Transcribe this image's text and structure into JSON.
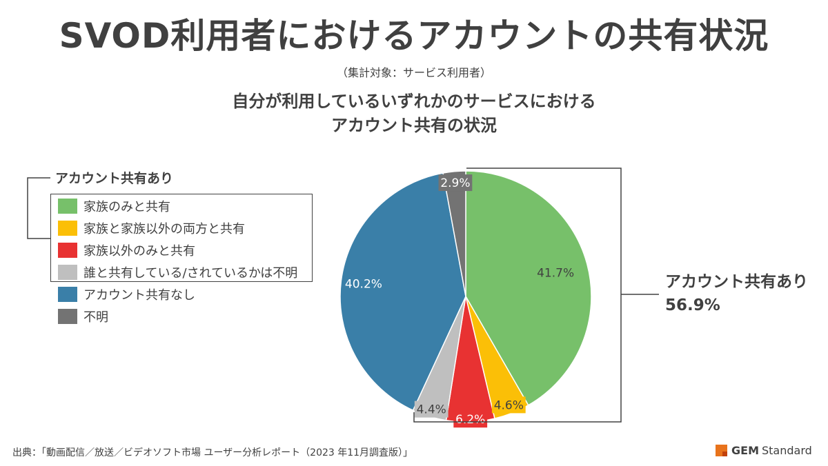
{
  "title": "SVOD利用者におけるアカウントの共有状況",
  "note": "（集計対象：サービス利用者）",
  "subtitle_line1": "自分が利用しているいずれかのサービスにおける",
  "subtitle_line2": "アカウント共有の状況",
  "legend_group_label": "アカウント共有あり",
  "callout": {
    "label": "アカウント共有あり",
    "value": "56.9%"
  },
  "source": "出典：「動画配信／放送／ビデオソフト市場 ユーザー分析レポート（2023 年11月調査版）」",
  "logo": {
    "brand": "GEM",
    "name": "Standard",
    "color": "#e8731c"
  },
  "chart_data": {
    "type": "pie",
    "title": "自分が利用しているいずれかのサービスにおけるアカウント共有の状況",
    "start_angle": "12 o'clock, clockwise",
    "slices": [
      {
        "label": "家族のみと共有",
        "value": 41.7,
        "display": "41.7%",
        "color": "#77c06a",
        "group": "アカウント共有あり"
      },
      {
        "label": "家族と家族以外の両方と共有",
        "value": 4.6,
        "display": "4.6%",
        "color": "#fbbf07",
        "group": "アカウント共有あり"
      },
      {
        "label": "家族以外のみと共有",
        "value": 6.2,
        "display": "6.2%",
        "color": "#e83232",
        "group": "アカウント共有あり"
      },
      {
        "label": "誰と共有している/されているかは不明",
        "value": 4.4,
        "display": "4.4%",
        "color": "#bfbfbf",
        "group": "アカウント共有あり"
      },
      {
        "label": "アカウント共有なし",
        "value": 40.2,
        "display": "40.2%",
        "color": "#3a7fa8",
        "group": ""
      },
      {
        "label": "不明",
        "value": 2.9,
        "display": "2.9%",
        "color": "#737373",
        "group": ""
      }
    ]
  }
}
